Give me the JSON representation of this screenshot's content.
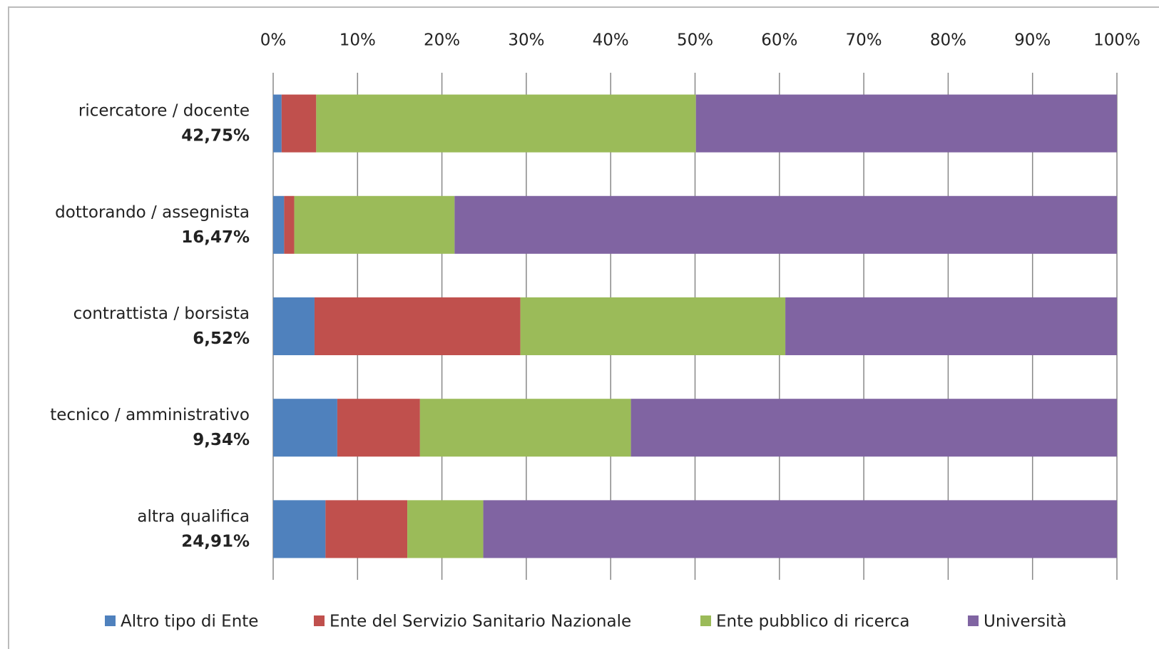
{
  "chart_data": {
    "type": "stacked-barh",
    "categories": [
      "ricercatore / docente",
      "dottorando / assegnista",
      "contrattista / borsista",
      "tecnico / amministrativo",
      "altra qualifica"
    ],
    "category_shares": [
      "42,75%",
      "16,47%",
      "6,52%",
      "9,34%",
      "24,91%"
    ],
    "series": [
      {
        "name": "Altro tipo di Ente",
        "color": "#4f81bd",
        "values": [
          1.0,
          1.3,
          4.9,
          7.6,
          6.2
        ]
      },
      {
        "name": "Ente del Servizio Sanitario Nazionale",
        "color": "#c0504d",
        "values": [
          4.1,
          1.2,
          24.4,
          9.8,
          9.7
        ]
      },
      {
        "name": "Ente pubblico di ricerca",
        "color": "#9bbb59",
        "values": [
          45.0,
          19.0,
          31.4,
          25.0,
          9.0
        ]
      },
      {
        "name": "Università",
        "color": "#8064a2",
        "values": [
          49.9,
          78.5,
          39.3,
          57.6,
          75.1
        ]
      }
    ],
    "xlim": [
      0,
      100
    ],
    "xticks": [
      {
        "value": 0,
        "label": "0%"
      },
      {
        "value": 10,
        "label": "10%"
      },
      {
        "value": 20,
        "label": "20%"
      },
      {
        "value": 30,
        "label": "30%"
      },
      {
        "value": 40,
        "label": "40%"
      },
      {
        "value": 50,
        "label": "50%"
      },
      {
        "value": 60,
        "label": "60%"
      },
      {
        "value": 70,
        "label": "70%"
      },
      {
        "value": 80,
        "label": "80%"
      },
      {
        "value": 90,
        "label": "90%"
      },
      {
        "value": 100,
        "label": "100%"
      }
    ],
    "grid": true,
    "legend": "bottom"
  }
}
